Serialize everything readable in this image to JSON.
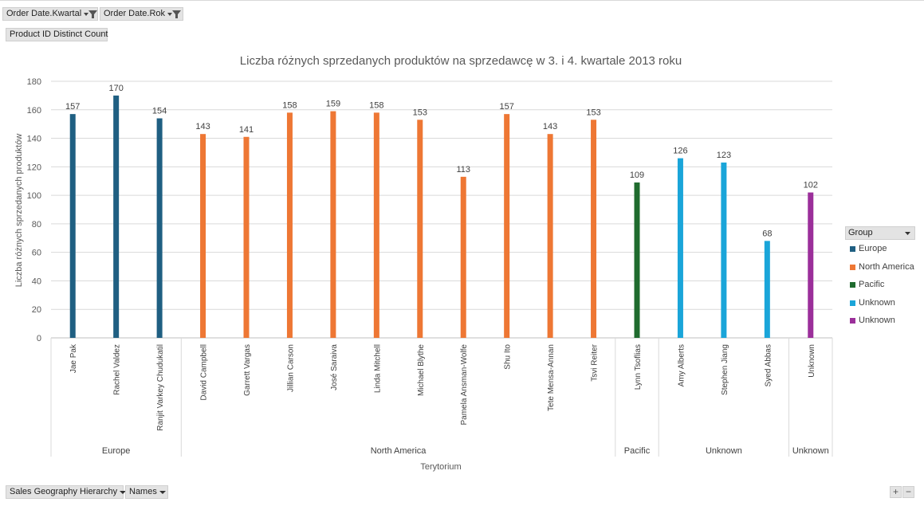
{
  "filters": {
    "quarter_label": "Order Date.Kwartal",
    "year_label": "Order Date.Rok",
    "value_label": "Product ID Distinct Count",
    "geo_label": "Sales Geography Hierarchy",
    "names_label": "Names"
  },
  "legend": {
    "title": "Group",
    "items": [
      {
        "label": "Europe",
        "color": "#1f5f82"
      },
      {
        "label": "North America",
        "color": "#ee7734"
      },
      {
        "label": "Pacific",
        "color": "#1f6b2e"
      },
      {
        "label": "Unknown",
        "color": "#1aa5d9"
      },
      {
        "label": "Unknown",
        "color": "#9b2f9a"
      }
    ]
  },
  "controls": {
    "plus": "+",
    "minus": "−"
  },
  "chart_data": {
    "type": "bar",
    "title": "Liczba różnych sprzedanych produktów na sprzedawcę w 3. i 4. kwartale 2013 roku",
    "xlabel": "Terytorium",
    "ylabel": "Liczba różnych sprzedanych produktów",
    "ylim": [
      0,
      180
    ],
    "yticks": [
      0,
      20,
      40,
      60,
      80,
      100,
      120,
      140,
      160,
      180
    ],
    "grid": true,
    "legend_position": "right",
    "groups": [
      {
        "name": "Europe",
        "color": "#1f5f82",
        "categories": [
          "Jae Pak",
          "Rachel Valdez",
          "Ranjit Varkey Chudukatil"
        ],
        "values": [
          157,
          170,
          154
        ]
      },
      {
        "name": "North America",
        "color": "#ee7734",
        "categories": [
          "David Campbell",
          "Garrett Vargas",
          "Jillian Carson",
          "José Saraiva",
          "Linda Mitchell",
          "Michael Blythe",
          "Pamela Ansman-Wolfe",
          "Shu Ito",
          "Tete Mensa-Annan",
          "Tsvi Reiter"
        ],
        "values": [
          143,
          141,
          158,
          159,
          158,
          153,
          113,
          157,
          143,
          153
        ]
      },
      {
        "name": "Pacific",
        "color": "#1f6b2e",
        "categories": [
          "Lynn Tsoflias"
        ],
        "values": [
          109
        ]
      },
      {
        "name": "Unknown",
        "color": "#1aa5d9",
        "categories": [
          "Amy Alberts",
          "Stephen Jiang",
          "Syed Abbas"
        ],
        "values": [
          126,
          123,
          68
        ]
      },
      {
        "name": "Unknown",
        "color": "#9b2f9a",
        "categories": [
          "Unknown"
        ],
        "values": [
          102
        ]
      }
    ]
  }
}
